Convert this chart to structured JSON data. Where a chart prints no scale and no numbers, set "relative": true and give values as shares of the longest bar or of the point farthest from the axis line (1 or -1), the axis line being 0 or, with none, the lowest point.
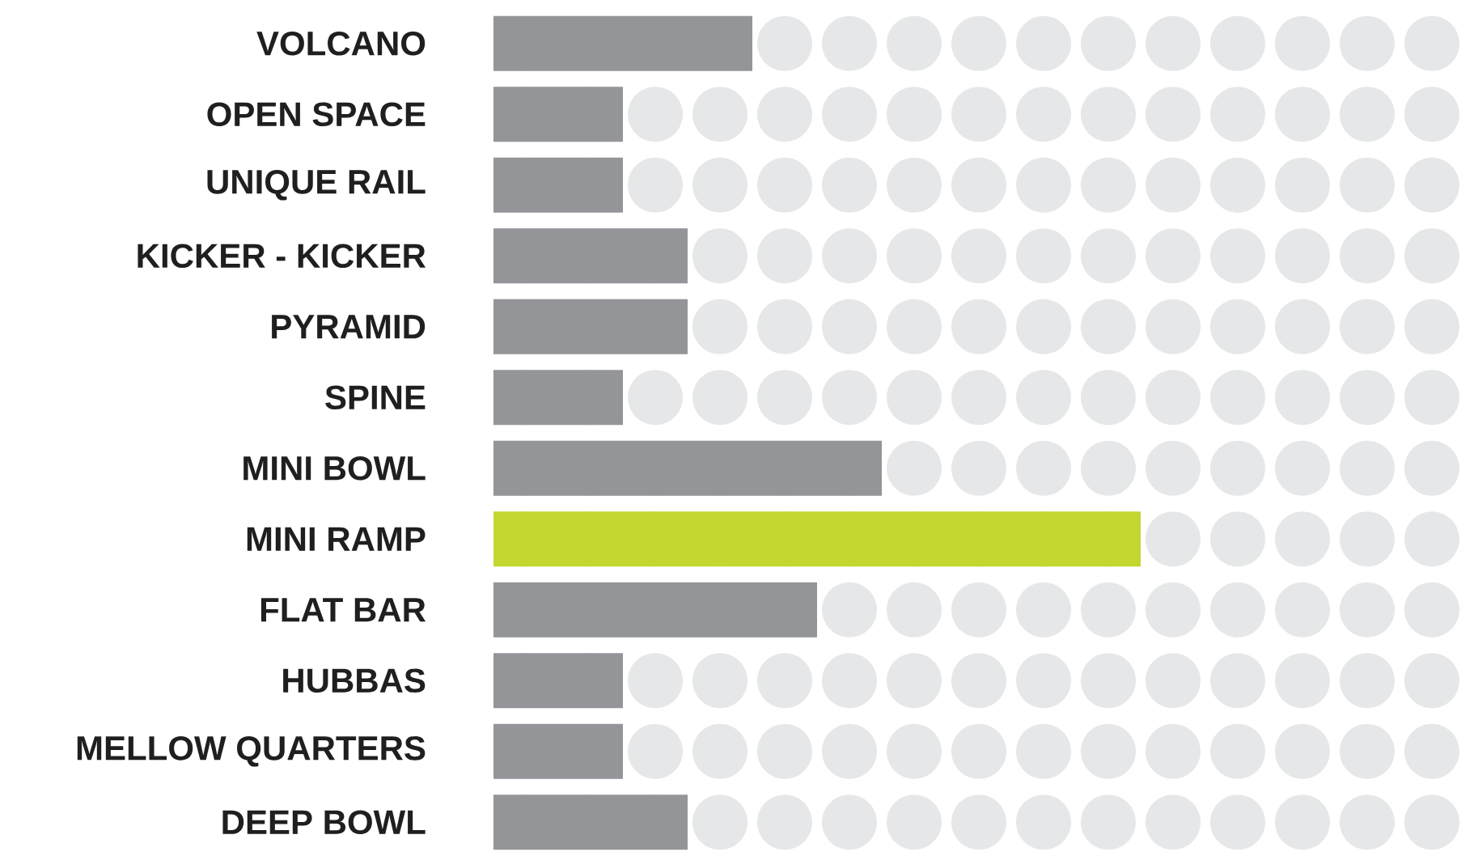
{
  "chart_data": {
    "type": "bar",
    "orientation": "horizontal",
    "relative": true,
    "categories": [
      "VOLCANO",
      "OPEN SPACE",
      "UNIQUE RAIL",
      "KICKER - KICKER",
      "PYRAMID",
      "SPINE",
      "MINI BOWL",
      "MINI RAMP",
      "FLAT BAR",
      "HUBBAS",
      "MELLOW QUARTERS",
      "DEEP BOWL"
    ],
    "values": [
      0.4,
      0.2,
      0.2,
      0.3,
      0.3,
      0.2,
      0.6,
      1,
      0.5,
      0.2,
      0.2,
      0.3
    ],
    "colors": [
      "#939598",
      "#939598",
      "#939598",
      "#939598",
      "#939598",
      "#939598",
      "#939598",
      "#c4d630",
      "#939598",
      "#939598",
      "#939598",
      "#939598"
    ]
  }
}
